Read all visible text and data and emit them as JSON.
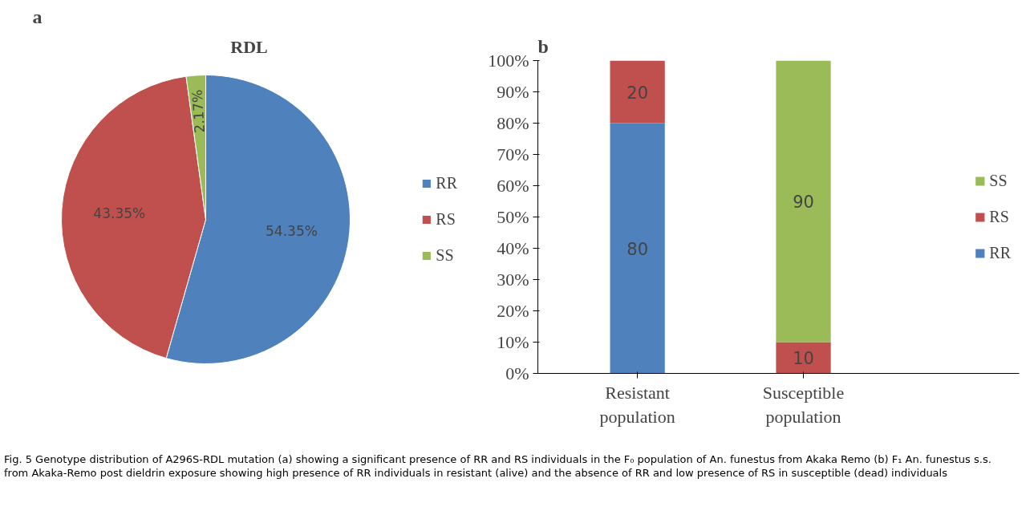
{
  "chart_data": [
    {
      "type": "pie",
      "title": "a",
      "subtitle": "RDL",
      "categories": [
        "RR",
        "RS",
        "SS"
      ],
      "values": [
        54.35,
        43.35,
        2.17
      ],
      "colors": [
        "#4f81bd",
        "#c0504d",
        "#9bbb59"
      ],
      "value_labels": [
        "54.35%",
        "43.35%",
        "2.17%"
      ],
      "legend": "right",
      "annotations": [
        "Fig. 5 Genotype distribution of A296S-RDL mutation (a) showing a significant presence of RR and RS individuals in the F₀ population of An. funestus from Akaka Remo (b) F₁ An. funestus s.s. from Akaka-Remo post dieldrin exposure showing high presence of RR individuals in resistant (alive) and the absence of RR and low presence of RS in susceptible (dead) individuals"
      ]
    },
    {
      "type": "bar",
      "title": "b",
      "stacked": true,
      "categories": [
        "Resistant population",
        "Susceptible population"
      ],
      "series": [
        {
          "name": "RR",
          "color": "#4f81bd",
          "values": [
            80,
            0
          ],
          "value_labels": [
            "80",
            null
          ]
        },
        {
          "name": "RS",
          "color": "#c0504d",
          "values": [
            20,
            10
          ],
          "value_labels": [
            "20",
            "10"
          ]
        },
        {
          "name": "SS",
          "color": "#9bbb59",
          "values": [
            0,
            90
          ],
          "value_labels": [
            null,
            "90"
          ]
        }
      ],
      "ylim": [
        0,
        100
      ],
      "yticks": [
        {
          "value": 0,
          "label": "0%"
        },
        {
          "value": 10,
          "label": "10%"
        },
        {
          "value": 20,
          "label": "20%"
        },
        {
          "value": 30,
          "label": "30%"
        },
        {
          "value": 40,
          "label": "40%"
        },
        {
          "value": 50,
          "label": "50%"
        },
        {
          "value": 60,
          "label": "60%"
        },
        {
          "value": 70,
          "label": "70%"
        },
        {
          "value": 80,
          "label": "80%"
        },
        {
          "value": 90,
          "label": "90%"
        },
        {
          "value": 100,
          "label": "100%"
        }
      ],
      "grid": false,
      "legend": "right"
    }
  ]
}
